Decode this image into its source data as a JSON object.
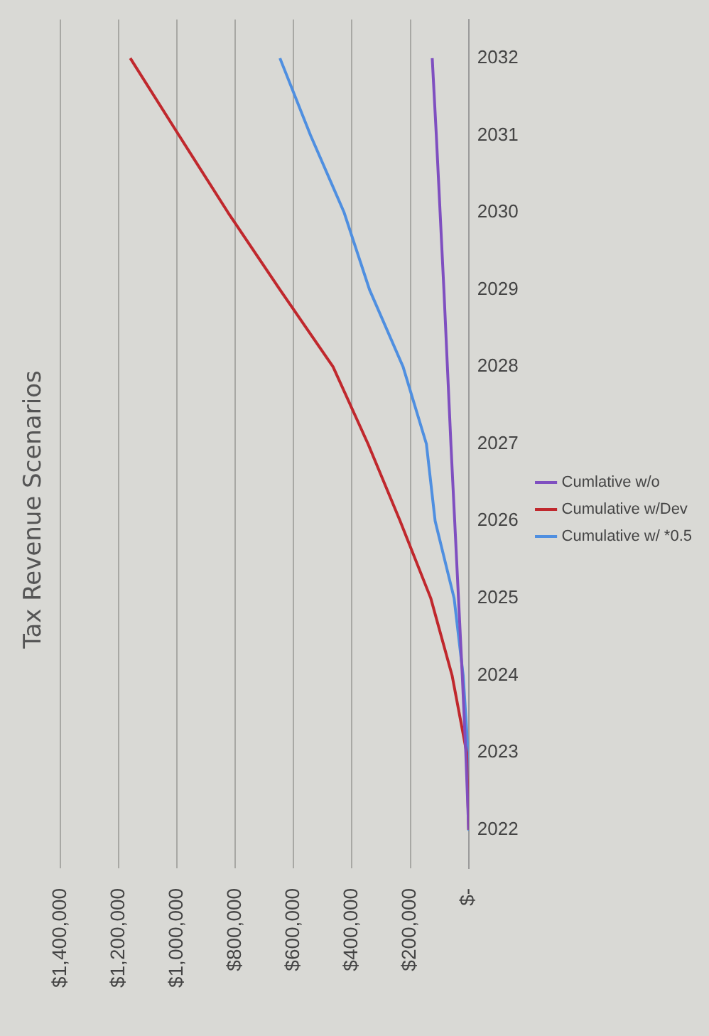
{
  "chart_data": {
    "type": "line",
    "title": "Tax Revenue Scenarios",
    "orientation": "horizontal",
    "categories": [
      "2032",
      "2031",
      "2030",
      "2029",
      "2028",
      "2027",
      "2026",
      "2025",
      "2024",
      "2023",
      "2022"
    ],
    "series": [
      {
        "name": "Cumlative w/o",
        "color": "#7f4fc0",
        "values": [
          125000,
          111000,
          98000,
          85000,
          73000,
          61000,
          48000,
          35000,
          22000,
          10000,
          0
        ]
      },
      {
        "name": "Cumulative w/Dev",
        "color": "#c0282d",
        "values": [
          1160000,
          993000,
          825000,
          647000,
          465000,
          345000,
          235000,
          130000,
          57000,
          7000,
          0
        ]
      },
      {
        "name": "Cumulative w/ *0.5",
        "color": "#4f8fe0",
        "values": [
          647000,
          542000,
          427000,
          340000,
          225000,
          145000,
          115000,
          50000,
          19000,
          2000,
          0
        ]
      }
    ],
    "xlim": [
      1400000,
      0
    ],
    "xticks": [
      {
        "value": 0,
        "label": "$-"
      },
      {
        "value": 200000,
        "label": "$200,000"
      },
      {
        "value": 400000,
        "label": "$400,000"
      },
      {
        "value": 600000,
        "label": "$600,000"
      },
      {
        "value": 800000,
        "label": "$800,000"
      },
      {
        "value": 1000000,
        "label": "$1,000,000"
      },
      {
        "value": 1200000,
        "label": "$1,200,000"
      },
      {
        "value": 1400000,
        "label": "$1,400,000"
      }
    ],
    "grid": "x",
    "legend": "right",
    "marker": "none",
    "line_style": "solid"
  }
}
